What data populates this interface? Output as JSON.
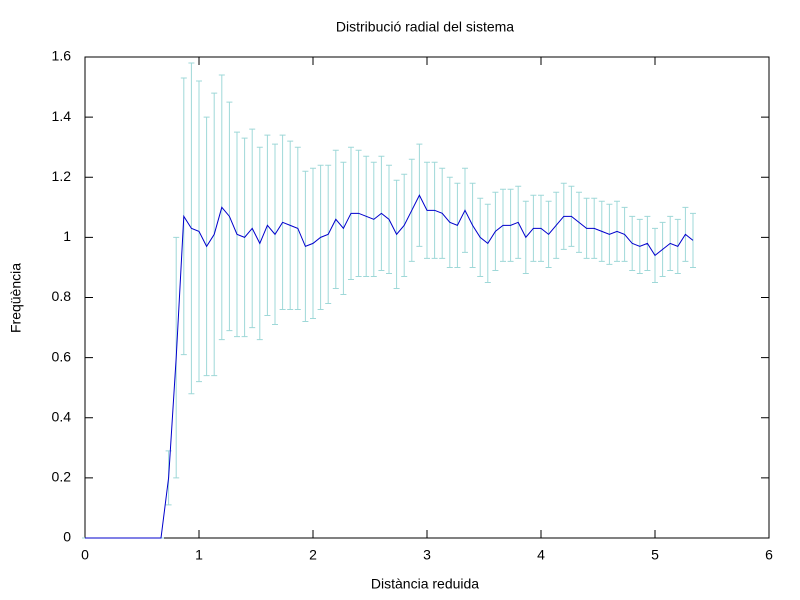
{
  "chart_data": {
    "type": "line_errorbar",
    "title": "Distribució radial del sistema",
    "xlabel": "Distància reduida",
    "ylabel": "Freqüència",
    "xlim": [
      0,
      6
    ],
    "xticks": [
      0,
      1,
      2,
      3,
      4,
      5,
      6
    ],
    "ylim": [
      0,
      1.6
    ],
    "yticks": [
      0,
      0.2,
      0.4,
      0.6,
      0.8,
      1,
      1.2,
      1.4,
      1.6
    ],
    "series": [
      {
        "color": "#0000cc",
        "error_color": "#9fd8d8",
        "x": [
          0,
          0.0667,
          0.1333,
          0.2,
          0.2667,
          0.3333,
          0.4,
          0.4667,
          0.5333,
          0.6,
          0.6667,
          0.7333,
          0.8,
          0.8667,
          0.9333,
          1,
          1.0667,
          1.1333,
          1.2,
          1.2667,
          1.3333,
          1.4,
          1.4667,
          1.5333,
          1.6,
          1.6667,
          1.7333,
          1.8,
          1.8667,
          1.9333,
          2,
          2.0667,
          2.1333,
          2.2,
          2.2667,
          2.3333,
          2.4,
          2.4667,
          2.5333,
          2.6,
          2.6667,
          2.7333,
          2.8,
          2.8667,
          2.9333,
          3,
          3.0667,
          3.1333,
          3.2,
          3.2667,
          3.3333,
          3.4,
          3.4667,
          3.5333,
          3.6,
          3.6667,
          3.7333,
          3.8,
          3.8667,
          3.9333,
          4,
          4.0667,
          4.1333,
          4.2,
          4.2667,
          4.3333,
          4.4,
          4.4667,
          4.5333,
          4.6,
          4.6667,
          4.7333,
          4.8,
          4.8667,
          4.9333,
          5,
          5.0667,
          5.1333,
          5.2,
          5.2667,
          5.3333
        ],
        "values": [
          0,
          0,
          0,
          0,
          0,
          0,
          0,
          0,
          0,
          0,
          0,
          0.2,
          0.6,
          1.07,
          1.03,
          1.02,
          0.97,
          1.01,
          1.1,
          1.07,
          1.01,
          1.0,
          1.03,
          0.98,
          1.04,
          1.01,
          1.05,
          1.04,
          1.03,
          0.97,
          0.98,
          1.0,
          1.01,
          1.06,
          1.03,
          1.08,
          1.08,
          1.07,
          1.06,
          1.08,
          1.06,
          1.01,
          1.04,
          1.09,
          1.14,
          1.09,
          1.09,
          1.08,
          1.05,
          1.04,
          1.09,
          1.04,
          1.0,
          0.98,
          1.02,
          1.04,
          1.04,
          1.05,
          1.0,
          1.03,
          1.03,
          1.01,
          1.04,
          1.07,
          1.07,
          1.05,
          1.03,
          1.03,
          1.02,
          1.01,
          1.02,
          1.01,
          0.98,
          0.97,
          0.98,
          0.94,
          0.96,
          0.98,
          0.97,
          1.01,
          0.99
        ],
        "errors": [
          0,
          0,
          0,
          0,
          0,
          0,
          0,
          0,
          0,
          0,
          0,
          0.09,
          0.4,
          0.46,
          0.55,
          0.5,
          0.43,
          0.47,
          0.44,
          0.38,
          0.34,
          0.33,
          0.33,
          0.32,
          0.3,
          0.3,
          0.29,
          0.28,
          0.27,
          0.25,
          0.25,
          0.24,
          0.23,
          0.23,
          0.22,
          0.22,
          0.21,
          0.2,
          0.19,
          0.19,
          0.18,
          0.18,
          0.17,
          0.17,
          0.17,
          0.16,
          0.16,
          0.15,
          0.15,
          0.14,
          0.14,
          0.14,
          0.13,
          0.13,
          0.13,
          0.12,
          0.12,
          0.12,
          0.12,
          0.11,
          0.11,
          0.11,
          0.11,
          0.11,
          0.1,
          0.1,
          0.1,
          0.1,
          0.1,
          0.1,
          0.1,
          0.09,
          0.09,
          0.09,
          0.09,
          0.09,
          0.09,
          0.09,
          0.09,
          0.09,
          0.09
        ]
      }
    ]
  }
}
